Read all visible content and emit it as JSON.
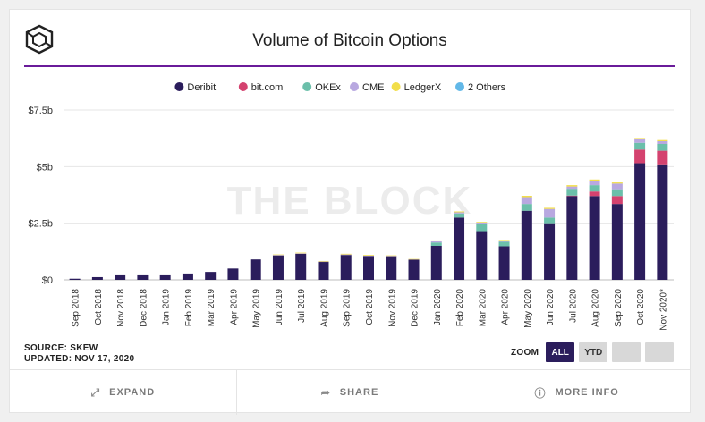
{
  "header": {
    "title": "Volume of Bitcoin Options"
  },
  "watermark": "THE BLOCK",
  "meta": {
    "source": "SOURCE: SKEW",
    "updated": "UPDATED: NOV 17, 2020"
  },
  "zoom": {
    "label": "ZOOM",
    "all": "ALL",
    "ytd": "YTD",
    "active": "ALL"
  },
  "footer": {
    "expand": "EXPAND",
    "share": "SHARE",
    "more_info": "MORE INFO"
  },
  "icons": {
    "logo": "cube-logo-icon",
    "expand": "expand-arrows-icon",
    "share": "share-arrow-icon",
    "info": "info-circle-icon"
  },
  "chart_data": {
    "type": "bar",
    "stacked": true,
    "title": "Volume of Bitcoin Options",
    "legend_position": "top-center",
    "grid": true,
    "ylim": [
      0,
      7.5
    ],
    "yticks": [
      {
        "value": 0,
        "label": "$0"
      },
      {
        "value": 2.5,
        "label": "$2.5b"
      },
      {
        "value": 5,
        "label": "$5b"
      },
      {
        "value": 7.5,
        "label": "$7.5b"
      }
    ],
    "categories": [
      "Sep 2018",
      "Oct 2018",
      "Nov 2018",
      "Dec 2018",
      "Jan 2019",
      "Feb 2019",
      "Mar 2019",
      "Apr 2019",
      "May 2019",
      "Jun 2019",
      "Jul 2019",
      "Aug 2019",
      "Sep 2019",
      "Oct 2019",
      "Nov 2019",
      "Dec 2019",
      "Jan 2020",
      "Feb 2020",
      "Mar 2020",
      "Apr 2020",
      "May 2020",
      "Jun 2020",
      "Jul 2020",
      "Aug 2020",
      "Sep 2020",
      "Oct 2020",
      "Nov 2020*"
    ],
    "series": [
      {
        "name": "Deribit",
        "color": "#2b1d5c",
        "values": [
          0.05,
          0.12,
          0.2,
          0.2,
          0.2,
          0.28,
          0.35,
          0.5,
          0.9,
          1.08,
          1.15,
          0.8,
          1.1,
          1.05,
          1.05,
          0.9,
          1.5,
          2.75,
          2.15,
          1.48,
          3.05,
          2.5,
          3.7,
          3.7,
          3.35,
          5.15,
          5.1
        ]
      },
      {
        "name": "bit.com",
        "color": "#d4426f",
        "values": [
          0,
          0,
          0,
          0,
          0,
          0,
          0,
          0,
          0,
          0,
          0,
          0,
          0,
          0,
          0,
          0,
          0,
          0,
          0,
          0,
          0,
          0,
          0.02,
          0.2,
          0.35,
          0.6,
          0.6
        ]
      },
      {
        "name": "OKEx",
        "color": "#6bbfaa",
        "values": [
          0,
          0,
          0,
          0,
          0,
          0,
          0,
          0,
          0,
          0,
          0,
          0,
          0,
          0,
          0,
          0,
          0.15,
          0.18,
          0.3,
          0.2,
          0.3,
          0.25,
          0.3,
          0.28,
          0.3,
          0.3,
          0.3
        ]
      },
      {
        "name": "CME",
        "color": "#b8a8e0",
        "values": [
          0,
          0,
          0,
          0,
          0,
          0,
          0,
          0,
          0,
          0.02,
          0.02,
          0.01,
          0.02,
          0.02,
          0.01,
          0.01,
          0.05,
          0.05,
          0.08,
          0.05,
          0.3,
          0.38,
          0.1,
          0.2,
          0.25,
          0.15,
          0.12
        ]
      },
      {
        "name": "LedgerX",
        "color": "#f2de4a",
        "values": [
          0,
          0,
          0,
          0,
          0,
          0,
          0,
          0,
          0,
          0.02,
          0.03,
          0.02,
          0.03,
          0.03,
          0.02,
          0.01,
          0.04,
          0.04,
          0.03,
          0.03,
          0.06,
          0.05,
          0.06,
          0.05,
          0.05,
          0.06,
          0.05
        ]
      },
      {
        "name": "2 Others",
        "color": "#62b8e8",
        "values": [
          0,
          0,
          0,
          0,
          0,
          0,
          0,
          0,
          0,
          0,
          0,
          0,
          0,
          0,
          0,
          0,
          0,
          0,
          0,
          0,
          0,
          0,
          0,
          0,
          0,
          0,
          0
        ]
      }
    ]
  }
}
